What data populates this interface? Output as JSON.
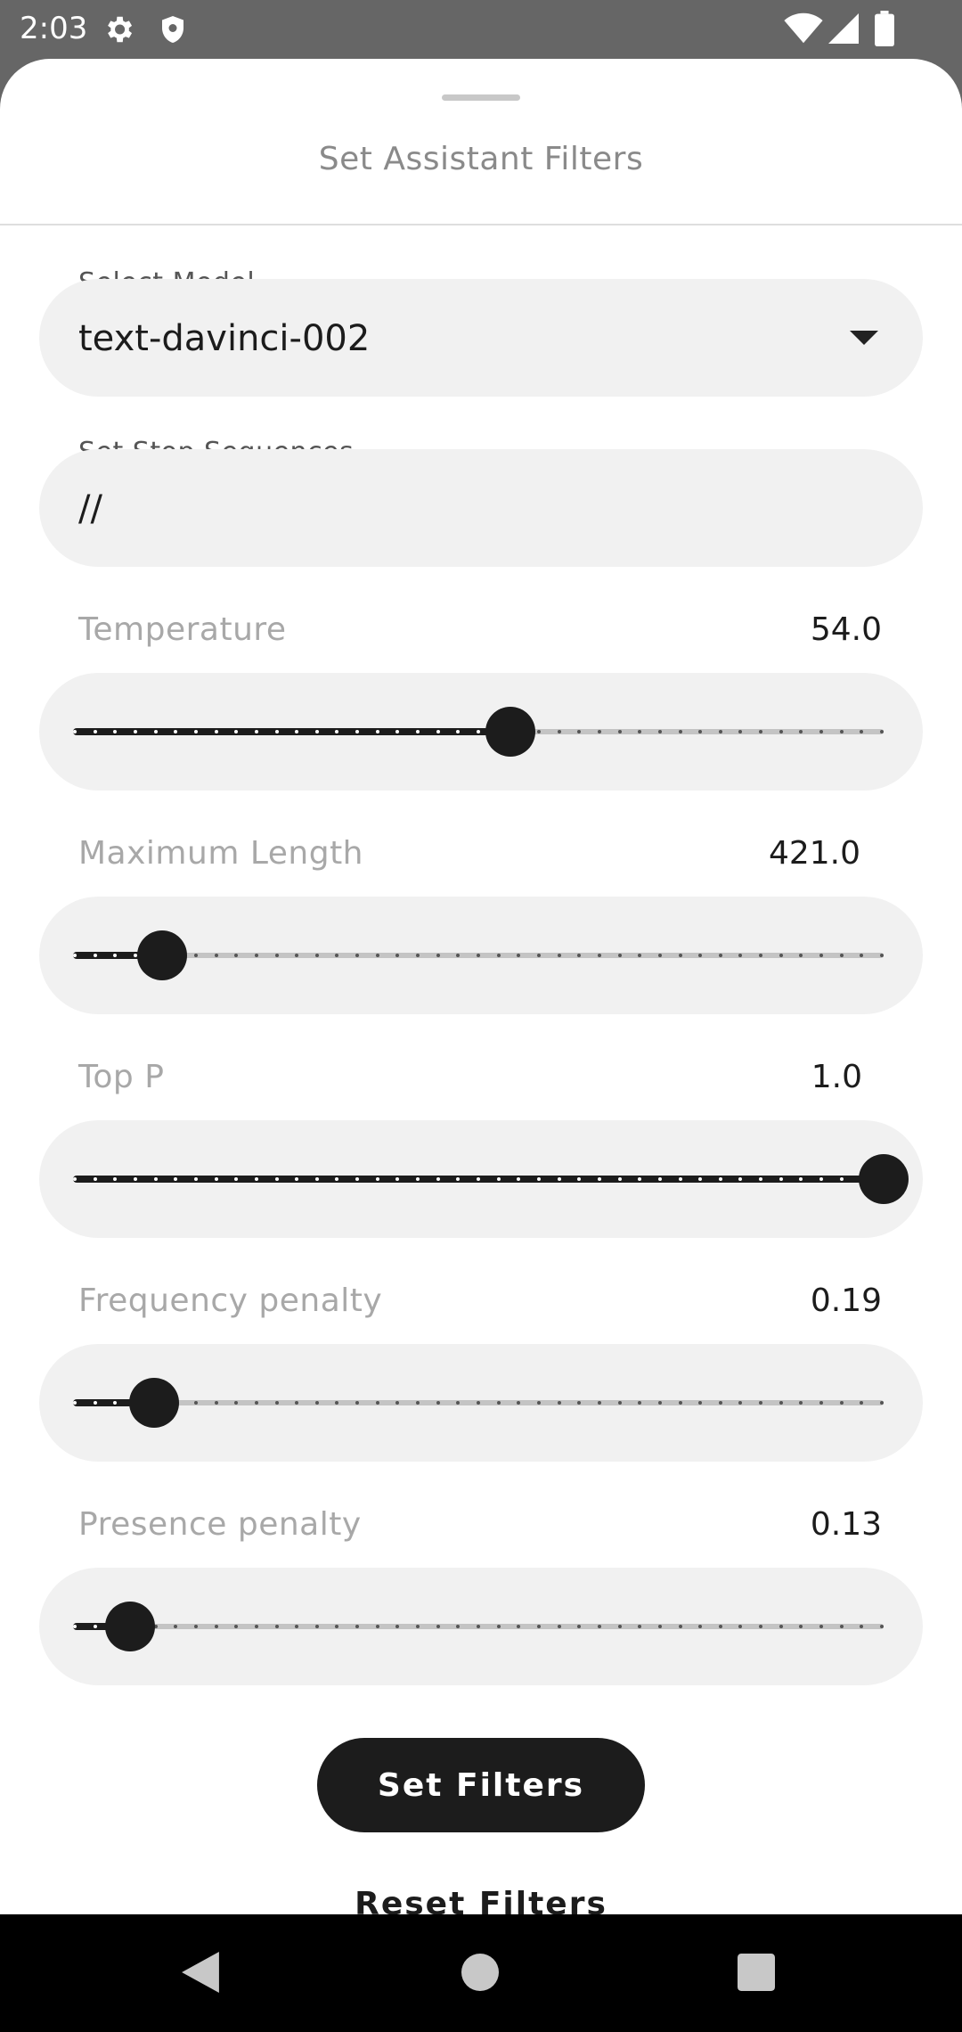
{
  "status_bar": {
    "time": "2:03",
    "icons": [
      "gear-icon",
      "shield-icon",
      "wifi-icon",
      "cell-signal-icon",
      "battery-icon"
    ]
  },
  "sheet": {
    "title": "Set Assistant Filters"
  },
  "model_select": {
    "label": "Select Model",
    "value": "text-davinci-002"
  },
  "stop_sequences": {
    "label": "Set Stop Sequences",
    "value": "//"
  },
  "sliders": [
    {
      "key": "temperature",
      "label": "Temperature",
      "value_text": "54.0",
      "fraction": 0.54
    },
    {
      "key": "maximum-length",
      "label": "Maximum Length",
      "value_text": "421.0",
      "fraction": 0.11
    },
    {
      "key": "top-p",
      "label": "Top P",
      "value_text": "1.0",
      "fraction": 1.0
    },
    {
      "key": "frequency-penalty",
      "label": "Frequency penalty",
      "value_text": "0.19",
      "fraction": 0.1
    },
    {
      "key": "presence-penalty",
      "label": "Presence penalty",
      "value_text": "0.13",
      "fraction": 0.07
    }
  ],
  "actions": {
    "set_filters": "Set Filters",
    "reset_filters": "Reset Filters"
  },
  "nav_bar": {
    "icons": [
      "back-icon",
      "home-icon",
      "recents-icon"
    ]
  },
  "colors": {
    "accent": "#1c1c1c",
    "surface": "#f1f1f1",
    "status_bar": "#666666"
  }
}
